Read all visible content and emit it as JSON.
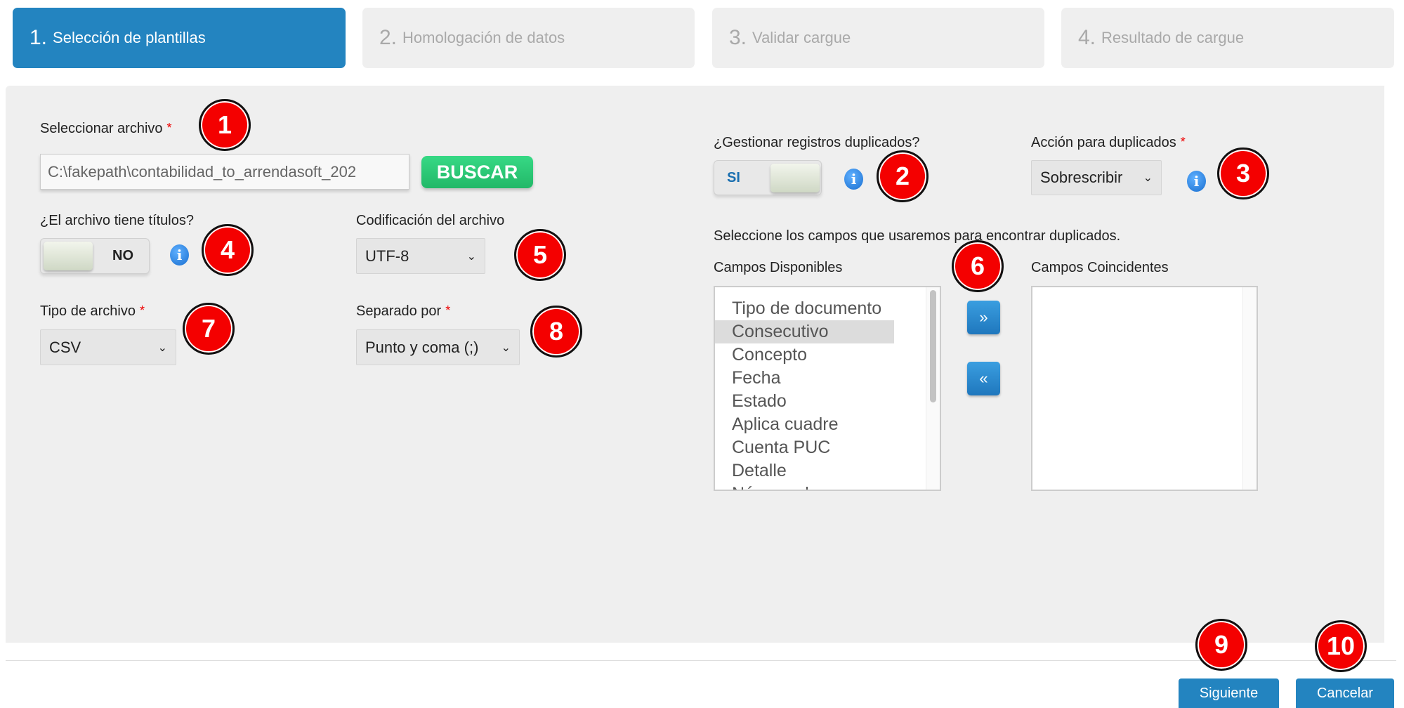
{
  "wizard": {
    "steps": [
      {
        "num": "1.",
        "label": "Selección de plantillas",
        "active": true
      },
      {
        "num": "2.",
        "label": "Homologación de datos",
        "active": false
      },
      {
        "num": "3.",
        "label": "Validar cargue",
        "active": false
      },
      {
        "num": "4.",
        "label": "Resultado de cargue",
        "active": false
      }
    ]
  },
  "form": {
    "file_label": "Seleccionar archivo",
    "required_mark": "*",
    "file_value": "C:\\fakepath\\contabilidad_to_arrendasoft_202",
    "browse_label": "BUSCAR",
    "has_titles_label": "¿El archivo tiene títulos?",
    "has_titles_value": "NO",
    "encoding_label": "Codificación del archivo",
    "encoding_value": "UTF-8",
    "file_type_label": "Tipo de archivo",
    "file_type_value": "CSV",
    "separator_label": "Separado por",
    "separator_value": "Punto y coma (;)",
    "duplicates_label": "¿Gestionar registros duplicados?",
    "duplicates_value": "SI",
    "dup_action_label": "Acción para duplicados",
    "dup_action_value": "Sobrescribir",
    "fields_instruction": "Seleccione los campos que usaremos para encontrar duplicados.",
    "available_label": "Campos Disponibles",
    "matching_label": "Campos Coincidentes",
    "available_fields": [
      "Tipo de documento",
      "Consecutivo",
      "Concepto",
      "Fecha",
      "Estado",
      "Aplica cuadre",
      "Cuenta PUC",
      "Detalle",
      "Número de documento"
    ],
    "selected_available": "Consecutivo",
    "move_right": "»",
    "move_left": "«"
  },
  "footer": {
    "next_label": "Siguiente",
    "cancel_label": "Cancelar"
  },
  "annotations": [
    "1",
    "2",
    "3",
    "4",
    "5",
    "6",
    "7",
    "8",
    "9",
    "10"
  ],
  "colors": {
    "accent": "#2384c0",
    "success": "#22b868",
    "badge": "#f40000"
  }
}
